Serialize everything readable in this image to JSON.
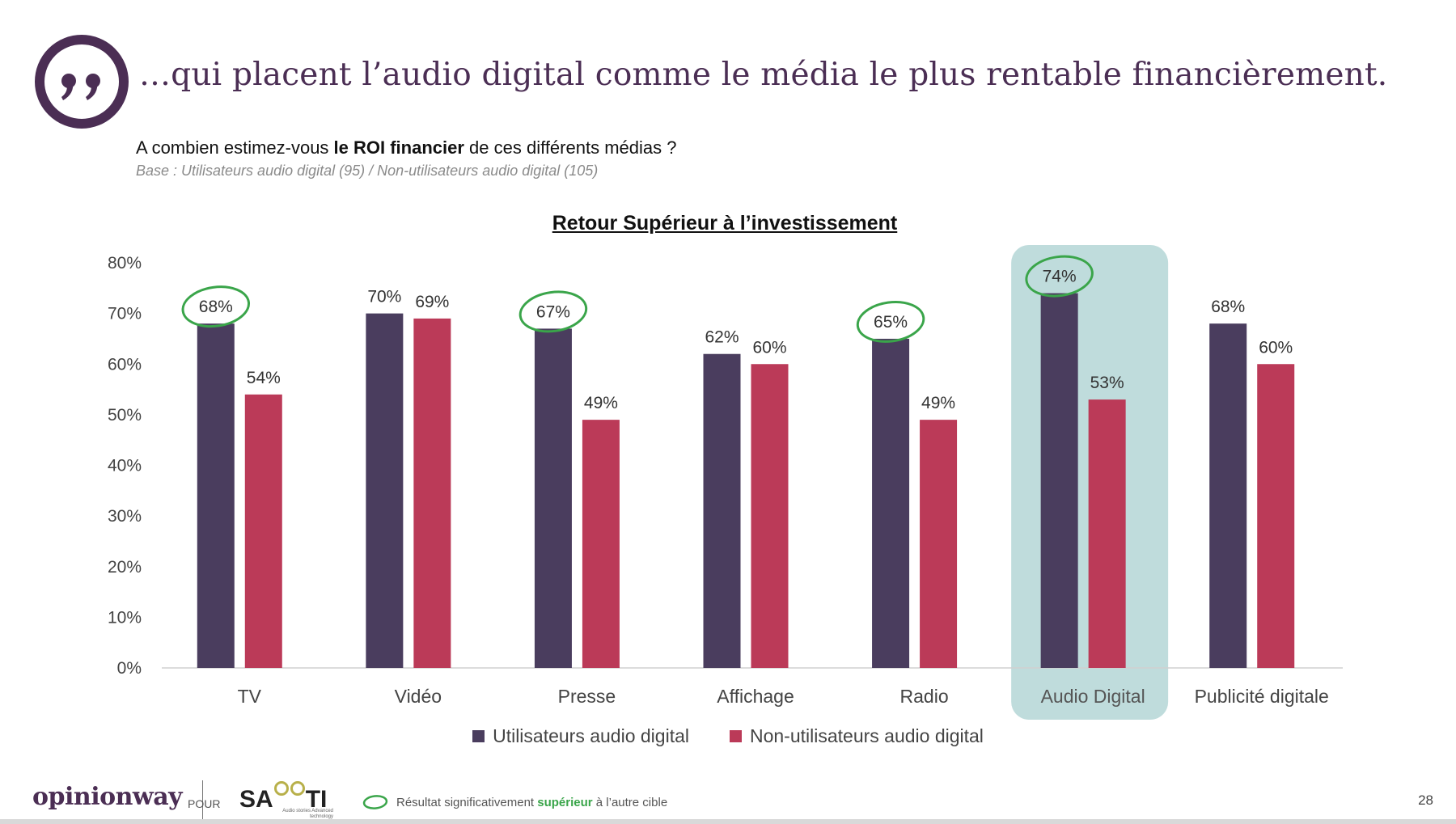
{
  "headline": "…qui placent l’audio digital comme le média le plus rentable financièrement.",
  "question": {
    "before": "A combien estimez-vous ",
    "bold": "le ROI financier",
    "after": " de ces différents médias ?"
  },
  "base_note": "Base : Utilisateurs audio digital (95) / Non-utilisateurs audio digital (105)",
  "colors": {
    "users": "#4a3d5e",
    "non_users": "#bb3a58",
    "highlight_bg": "#bfdcdc",
    "significance_ring": "#3aa54a",
    "brand": "#4b2e54"
  },
  "chart_data": {
    "type": "bar",
    "title": "Retour Supérieur à l’investissement",
    "categories": [
      "TV",
      "Vidéo",
      "Presse",
      "Affichage",
      "Radio",
      "Audio Digital",
      "Publicité digitale"
    ],
    "series": [
      {
        "name": "Utilisateurs audio digital",
        "values": [
          68,
          70,
          67,
          62,
          65,
          74,
          68
        ],
        "labels": [
          "68%",
          "70%",
          "67%",
          "62%",
          "65%",
          "74%",
          "68%"
        ],
        "significant": [
          true,
          false,
          true,
          false,
          true,
          true,
          false
        ]
      },
      {
        "name": "Non-utilisateurs audio digital",
        "values": [
          54,
          69,
          49,
          60,
          49,
          53,
          60
        ],
        "labels": [
          "54%",
          "69%",
          "49%",
          "60%",
          "49%",
          "53%",
          "60%"
        ],
        "significant": [
          false,
          false,
          false,
          false,
          false,
          false,
          false
        ]
      }
    ],
    "highlighted_category": "Audio Digital",
    "ylim": [
      0,
      80
    ],
    "yticks": [
      0,
      10,
      20,
      30,
      40,
      50,
      60,
      70,
      80
    ],
    "ytick_labels": [
      "0%",
      "10%",
      "20%",
      "30%",
      "40%",
      "50%",
      "60%",
      "70%",
      "80%"
    ],
    "grid": false,
    "legend_position": "bottom"
  },
  "footer": {
    "logo": "opinionway",
    "pour": "POUR",
    "partner_before": "SA",
    "partner_after": "TI",
    "partner_sub": "Audio stories Advanced technology",
    "note_before": "Résultat significativement ",
    "note_bold": "supérieur",
    "note_after": " à l’autre cible",
    "page_number": "28"
  }
}
